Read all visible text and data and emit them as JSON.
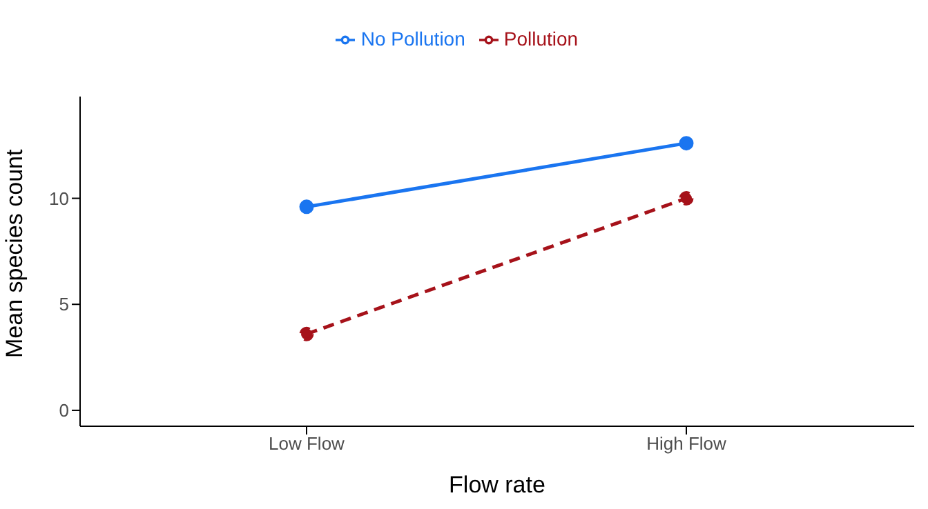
{
  "chart_data": {
    "type": "line",
    "xlabel": "Flow rate",
    "ylabel": "Mean species count",
    "categories": [
      "Low Flow",
      "High Flow"
    ],
    "series": [
      {
        "name": "No Pollution",
        "color": "#1a75f0",
        "values": [
          9.6,
          12.6
        ],
        "line_style": "solid"
      },
      {
        "name": "Pollution",
        "color": "#a6121a",
        "values": [
          3.6,
          10.0
        ],
        "line_style": "dashed"
      }
    ],
    "ylim": [
      -0.75,
      14.8
    ],
    "yticks": [
      0,
      5,
      10
    ],
    "grid": false,
    "legend": "top",
    "marker": "circle"
  }
}
